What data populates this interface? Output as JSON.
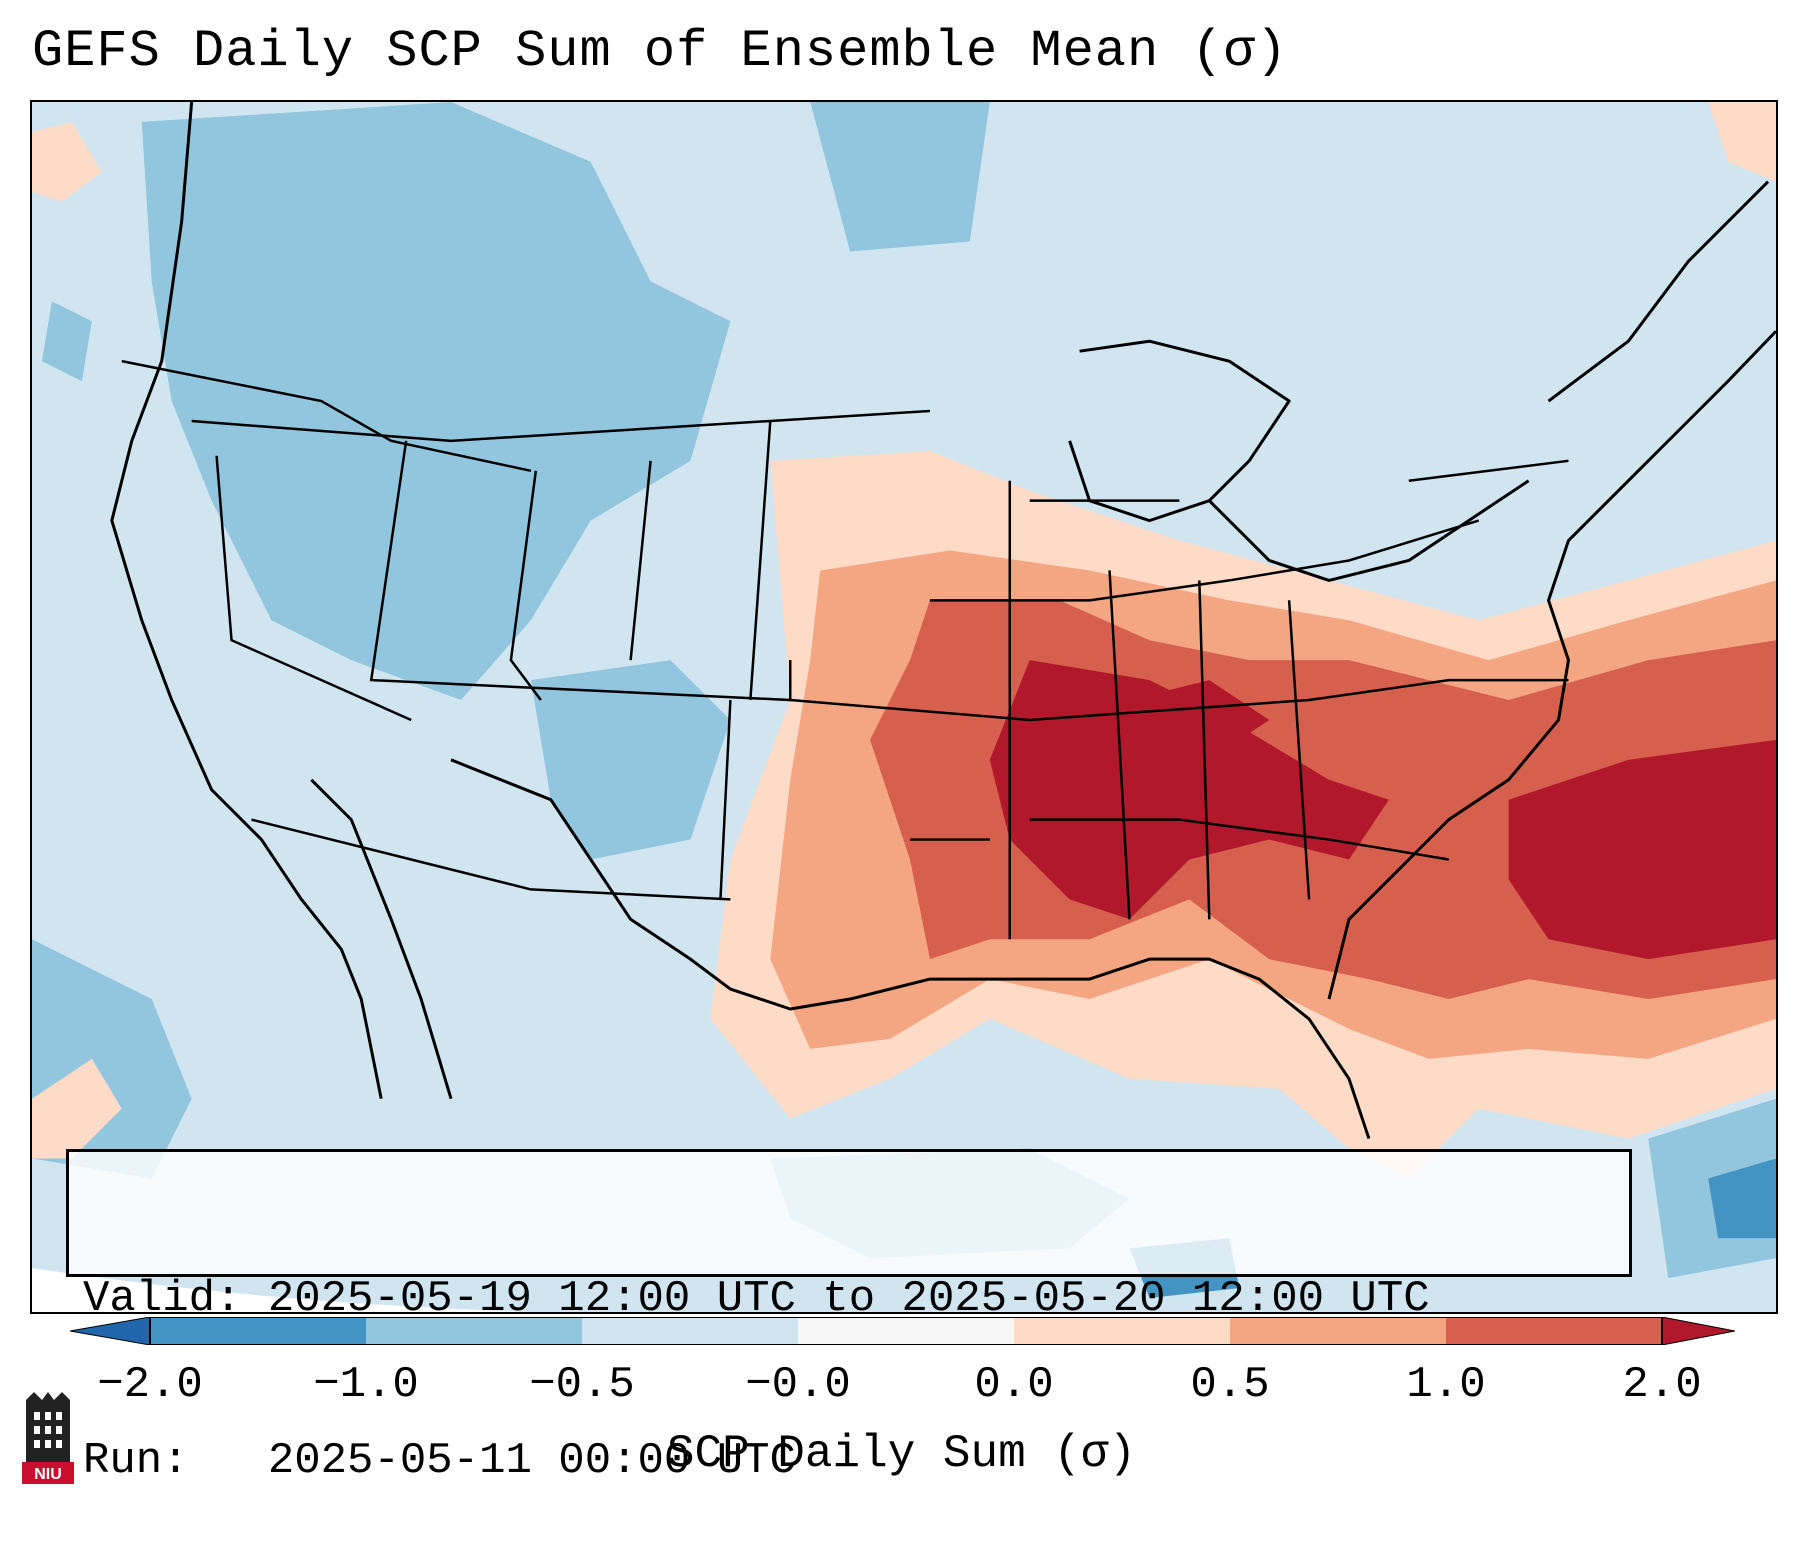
{
  "title": "GEFS Daily SCP Sum of Ensemble Mean (σ)",
  "info": {
    "valid_label": "Valid:",
    "valid_value": "2025-05-19 12:00 UTC to 2025-05-20 12:00 UTC",
    "run_label": "Run:",
    "run_value": "2025-05-11 00:00 UTC"
  },
  "colorbar": {
    "label": "SCP Daily Sum (σ)",
    "ticks": [
      "−2.0",
      "−1.0",
      "−0.5",
      "−0.0",
      "0.0",
      "0.5",
      "1.0",
      "2.0"
    ],
    "colors": {
      "neg_extreme": "#2166ac",
      "neg_2_1": "#4393c3",
      "neg_1_05": "#92c5de",
      "neg_05_0": "#d1e5f0",
      "zero": "#f7f7f7",
      "pos_0_05": "#fddbc7",
      "pos_05_1": "#f4a582",
      "pos_1_2": "#d6604d",
      "pos_extreme": "#b2182b"
    }
  },
  "logo": {
    "text": "NIU",
    "icon": "niu-logo-icon"
  }
}
